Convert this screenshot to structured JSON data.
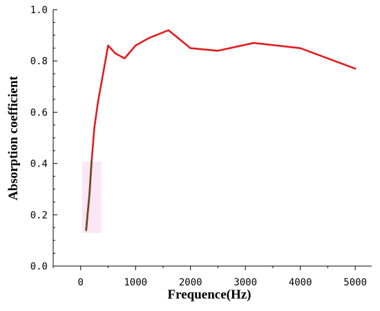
{
  "chart_data": {
    "type": "line",
    "title": "",
    "xlabel": "Frequence(Hz)",
    "ylabel": "Absorption coefficient",
    "xlim": [
      -500,
      5300
    ],
    "ylim": [
      0,
      1.0
    ],
    "x_ticks": [
      0,
      1000,
      2000,
      3000,
      4000,
      5000
    ],
    "x_tick_labels": [
      "0",
      "1000",
      "2000",
      "3000",
      "4000",
      "5000"
    ],
    "y_ticks": [
      0,
      0.2,
      0.4,
      0.6,
      0.8,
      1.0
    ],
    "y_tick_labels": [
      "0.0",
      "0.2",
      "0.4",
      "0.6",
      "0.8",
      "1.0"
    ],
    "grid": false,
    "legend": "none",
    "series": [
      {
        "color": "#e31a1c",
        "x": [
          100,
          125,
          160,
          200,
          250,
          315,
          400,
          500,
          630,
          800,
          1000,
          1250,
          1600,
          2000,
          2500,
          3150,
          4000,
          5000
        ],
        "y": [
          0.14,
          0.2,
          0.28,
          0.41,
          0.54,
          0.64,
          0.74,
          0.86,
          0.83,
          0.81,
          0.86,
          0.89,
          0.92,
          0.85,
          0.84,
          0.87,
          0.85,
          0.77
        ]
      }
    ],
    "low_frequency_segment": {
      "color": "#6b4a1e",
      "highlight_color": "#f7dcf3",
      "x_range": [
        100,
        200
      ]
    }
  }
}
